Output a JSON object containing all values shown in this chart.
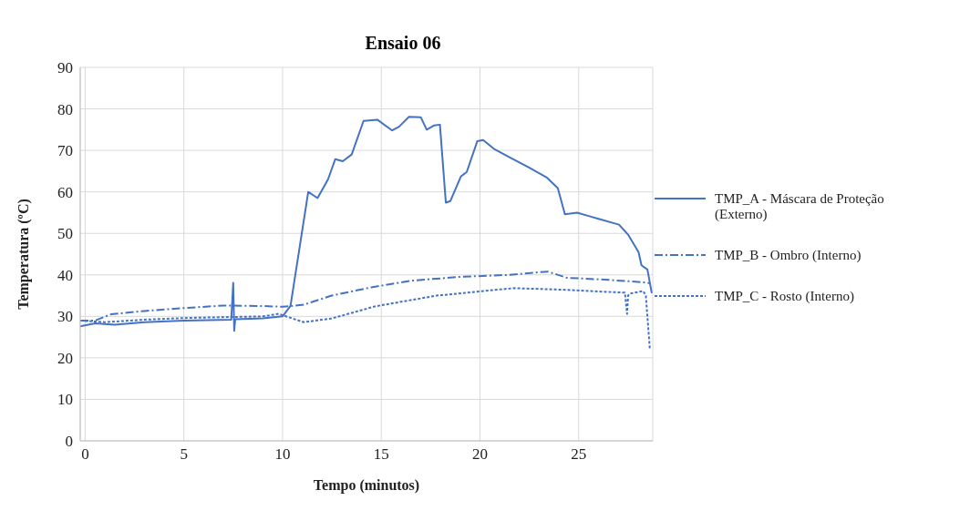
{
  "chart_data": {
    "type": "line",
    "title": "Ensaio 06",
    "xlabel": "Tempo (minutos)",
    "ylabel": "Temperatura (ºC)",
    "xlim": [
      -0.25,
      28.75
    ],
    "xticks": [
      0,
      5,
      10,
      15,
      20,
      25
    ],
    "ylim": [
      0,
      90
    ],
    "yticks": [
      0,
      10,
      20,
      30,
      40,
      50,
      60,
      70,
      80,
      90
    ],
    "grid": true,
    "legend": "right",
    "marker": "none",
    "series": [
      {
        "name": "TMP_A - Máscara de Proteção (Externo)",
        "color": "#4472c4",
        "line_style": "solid",
        "x": [
          -0.25,
          0.5,
          1.5,
          3,
          5,
          7.4,
          7.5,
          7.55,
          7.6,
          9,
          10,
          10.4,
          11.3,
          11.77,
          12.3,
          12.67,
          13.05,
          13.5,
          14.1,
          14.8,
          15.55,
          15.9,
          16.4,
          17.0,
          17.3,
          17.66,
          17.97,
          18.27,
          18.5,
          19.03,
          19.33,
          19.86,
          20.16,
          20.7,
          21.6,
          22.5,
          23.4,
          23.94,
          24.3,
          24.92,
          25.5,
          26.0,
          27.04,
          27.5,
          28.03,
          28.18,
          28.48,
          28.7
        ],
        "values": [
          27.6,
          28.3,
          28.0,
          28.6,
          29.0,
          29.2,
          38.1,
          26.5,
          29.3,
          29.5,
          30.0,
          32.5,
          60.0,
          58.5,
          63.0,
          67.9,
          67.4,
          69.0,
          77.1,
          77.4,
          74.8,
          75.7,
          78.1,
          78.0,
          75.0,
          76.0,
          76.2,
          57.4,
          57.8,
          63.7,
          64.8,
          72.2,
          72.5,
          70.4,
          68.1,
          65.8,
          63.4,
          60.9,
          54.6,
          55.0,
          54.2,
          53.5,
          52.1,
          49.7,
          45.5,
          42.3,
          41.3,
          35.6
        ]
      },
      {
        "name": "TMP_B - Ombro (Interno)",
        "color": "#4472c4",
        "line_style": "dashdot",
        "x": [
          -0.25,
          0.5,
          1.3,
          3,
          5,
          7,
          9,
          10,
          11.07,
          12.48,
          14.5,
          16.54,
          18.9,
          21.5,
          23.43,
          24.4,
          26.5,
          28.3,
          28.6
        ],
        "values": [
          29.0,
          29.0,
          30.5,
          31.3,
          32.0,
          32.6,
          32.5,
          32.3,
          32.8,
          35.0,
          37.0,
          38.6,
          39.5,
          40.0,
          40.8,
          39.3,
          38.8,
          38.2,
          38.0
        ]
      },
      {
        "name": "TMP_C - Rosto (Interno)",
        "color": "#4472c4",
        "line_style": "dashed",
        "x": [
          -0.25,
          1,
          3,
          5,
          7,
          9,
          9.8,
          11.07,
          12.5,
          14.67,
          17.8,
          21.7,
          24.37,
          27.34,
          27.45,
          27.5,
          27.6,
          28.27,
          28.4,
          28.6
        ],
        "values": [
          29.0,
          28.6,
          29.2,
          29.6,
          29.8,
          30.0,
          30.6,
          28.6,
          29.5,
          32.4,
          35.0,
          36.8,
          36.4,
          35.7,
          30.6,
          35.0,
          35.5,
          36.1,
          35.0,
          22.3
        ]
      }
    ]
  }
}
